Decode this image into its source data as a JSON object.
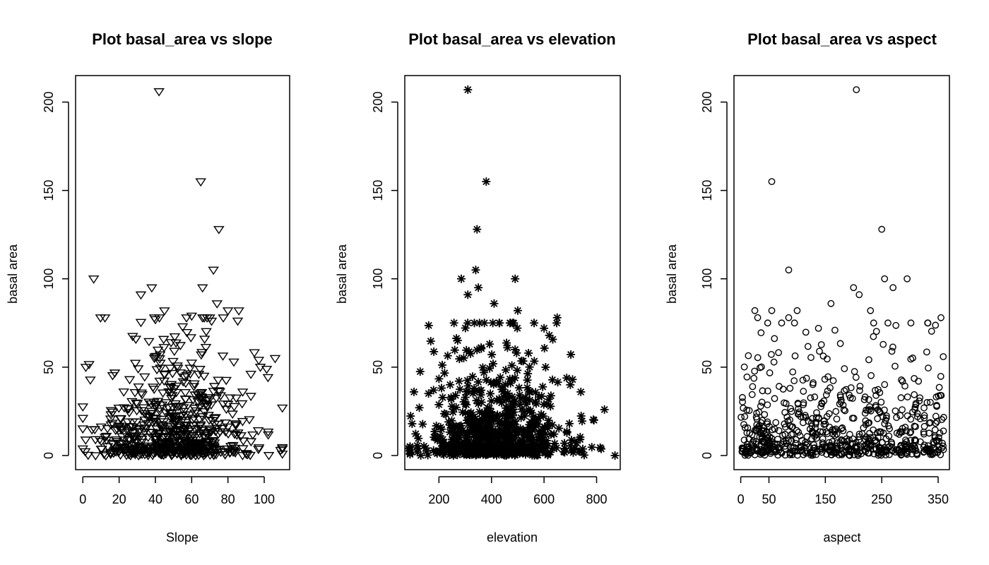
{
  "chart_data": [
    {
      "type": "scatter",
      "title": "Plot basal_area vs slope",
      "xlabel": "Slope",
      "ylabel": "basal area",
      "marker": "triangle-down",
      "xlim": [
        -4,
        114
      ],
      "ylim": [
        -8,
        215
      ],
      "xticks": [
        0,
        20,
        40,
        60,
        80,
        100
      ],
      "yticks": [
        0,
        50,
        100,
        150,
        200
      ],
      "outliers": [
        [
          42,
          206
        ],
        [
          65,
          155
        ],
        [
          75,
          128
        ],
        [
          72,
          105
        ],
        [
          6,
          100
        ],
        [
          32,
          91
        ],
        [
          38,
          95
        ],
        [
          66,
          95
        ],
        [
          74,
          86
        ],
        [
          80,
          82
        ],
        [
          86,
          82
        ],
        [
          45,
          82
        ],
        [
          60,
          79
        ],
        [
          40,
          77
        ],
        [
          106,
          55
        ],
        [
          97,
          54
        ],
        [
          110,
          27
        ],
        [
          109,
          3
        ]
      ],
      "n_bulk": 650,
      "bulk_seed": 11,
      "bulk_x_mean": 50,
      "bulk_x_sd": 22,
      "bulk_x_range": [
        0,
        110
      ],
      "bulk_y_scale": 24,
      "bulk_y_max": 78
    },
    {
      "type": "scatter",
      "title": "Plot basal_area vs elevation",
      "xlabel": "elevation",
      "ylabel": "basal area",
      "marker": "asterisk",
      "xlim": [
        70,
        890
      ],
      "ylim": [
        -8,
        215
      ],
      "xticks": [
        200,
        400,
        600,
        800
      ],
      "yticks": [
        0,
        50,
        100,
        150,
        200
      ],
      "outliers": [
        [
          310,
          207
        ],
        [
          380,
          155
        ],
        [
          345,
          128
        ],
        [
          340,
          105
        ],
        [
          350,
          95
        ],
        [
          285,
          100
        ],
        [
          310,
          91
        ],
        [
          490,
          100
        ],
        [
          410,
          86
        ],
        [
          500,
          82
        ],
        [
          650,
          78
        ],
        [
          600,
          72
        ],
        [
          620,
          68
        ],
        [
          700,
          40
        ],
        [
          740,
          36
        ],
        [
          830,
          26
        ],
        [
          790,
          20
        ],
        [
          870,
          0
        ],
        [
          85,
          4
        ],
        [
          105,
          36
        ]
      ],
      "n_bulk": 750,
      "bulk_seed": 23,
      "bulk_x_mean": 410,
      "bulk_x_sd": 130,
      "bulk_x_range": [
        90,
        880
      ],
      "bulk_y_scale": 22,
      "bulk_y_max": 75
    },
    {
      "type": "scatter",
      "title": "Plot basal_area vs aspect",
      "xlabel": "aspect",
      "ylabel": "basal area",
      "marker": "circle",
      "xlim": [
        -12,
        370
      ],
      "ylim": [
        -8,
        215
      ],
      "xticks": [
        0,
        50,
        150,
        250,
        350
      ],
      "yticks": [
        0,
        50,
        100,
        150,
        200
      ],
      "outliers": [
        [
          205,
          207
        ],
        [
          55,
          155
        ],
        [
          250,
          128
        ],
        [
          85,
          105
        ],
        [
          295,
          100
        ],
        [
          255,
          100
        ],
        [
          200,
          95
        ],
        [
          270,
          95
        ],
        [
          210,
          91
        ],
        [
          160,
          86
        ],
        [
          25,
          82
        ],
        [
          55,
          82
        ],
        [
          100,
          82
        ],
        [
          230,
          82
        ],
        [
          355,
          78
        ],
        [
          85,
          78
        ],
        [
          30,
          78
        ]
      ],
      "n_bulk": 700,
      "bulk_seed": 37,
      "bulk_x_mean": 180,
      "bulk_x_sd": 1000,
      "bulk_x_range": [
        0,
        360
      ],
      "bulk_y_scale": 20,
      "bulk_y_max": 75
    }
  ]
}
